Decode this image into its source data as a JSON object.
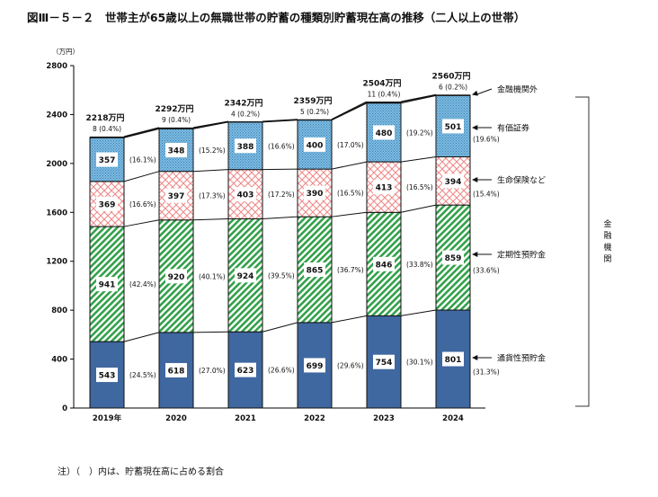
{
  "title": "図Ⅲ－５－２　世帯主が65歳以上の無職世帯の貯蓄の種類別貯蓄現在高の推移（二人以上の世帯）",
  "unit_label": "（万円）",
  "note": "注）（　）内は、貯蓄現在高に占める割合",
  "bracket_label": "金融機関",
  "colors": {
    "cash": "#3f67a0",
    "time": "#33a04a",
    "insurance": "#f08a8a",
    "securities": "#6fb3dc",
    "outside": "#111111"
  },
  "chart_data": {
    "type": "bar",
    "stacked": true,
    "title": "世帯主が65歳以上の無職世帯の貯蓄の種類別貯蓄現在高の推移（二人以上の世帯）",
    "ylabel": "（万円）",
    "ylim": [
      0,
      2800
    ],
    "yticks": [
      0,
      400,
      800,
      1200,
      1600,
      2000,
      2400,
      2800
    ],
    "categories": [
      "2019年",
      "2020",
      "2021",
      "2022",
      "2023",
      "2024"
    ],
    "totals": [
      "2218万円",
      "2292万円",
      "2342万円",
      "2359万円",
      "2504万円",
      "2560万円"
    ],
    "series": [
      {
        "key": "cash",
        "name": "通貨性預貯金",
        "values": [
          543,
          618,
          623,
          699,
          754,
          801
        ],
        "pct": [
          "(24.5%)",
          "(27.0%)",
          "(26.6%)",
          "(29.6%)",
          "(30.1%)",
          "(31.3%)"
        ]
      },
      {
        "key": "time",
        "name": "定期性預貯金",
        "values": [
          941,
          920,
          924,
          865,
          846,
          859
        ],
        "pct": [
          "(42.4%)",
          "(40.1%)",
          "(39.5%)",
          "(36.7%)",
          "(33.8%)",
          "(33.6%)"
        ]
      },
      {
        "key": "insurance",
        "name": "生命保険など",
        "values": [
          369,
          397,
          403,
          390,
          413,
          394
        ],
        "pct": [
          "(16.6%)",
          "(17.3%)",
          "(17.2%)",
          "(16.5%)",
          "(16.5%)",
          "(15.4%)"
        ]
      },
      {
        "key": "securities",
        "name": "有価証券",
        "values": [
          357,
          348,
          388,
          400,
          480,
          501
        ],
        "pct": [
          "(16.1%)",
          "(15.2%)",
          "(16.6%)",
          "(17.0%)",
          "(19.2%)",
          "(19.6%)"
        ]
      },
      {
        "key": "outside",
        "name": "金融機関外",
        "values": [
          8,
          9,
          4,
          5,
          11,
          6
        ],
        "pct": [
          "(0.4%)",
          "(0.4%)",
          "(0.2%)",
          "(0.2%)",
          "(0.4%)",
          "(0.2%)"
        ]
      }
    ],
    "legend": "right"
  }
}
